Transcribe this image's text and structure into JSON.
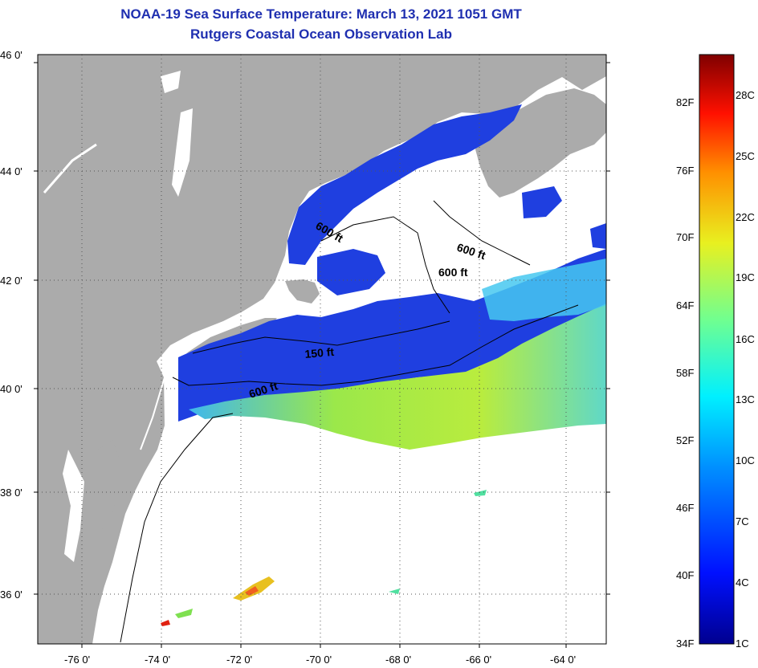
{
  "header": {
    "title": "NOAA-19 Sea Surface Temperature:  March 13, 2021 1051 GMT",
    "subtitle": "Rutgers Coastal Ocean Observation Lab"
  },
  "map": {
    "lat_labels": [
      "46 0'",
      "44 0'",
      "42 0'",
      "40 0'",
      "38 0'",
      "36 0'"
    ],
    "lon_labels": [
      "-76 0'",
      "-74 0'",
      "-72 0'",
      "-70 0'",
      "-68 0'",
      "-66 0'",
      "-64 0'"
    ],
    "contour_labels": [
      "600 ft",
      "600 ft",
      "600 ft",
      "150 ft",
      "600 ft"
    ],
    "colors": {
      "land": "#ababab",
      "cloud": "#ffffff",
      "cold": "#1f3fe0",
      "warm": "#9ee84a"
    }
  },
  "colorbar": {
    "fahrenheit_labels": [
      "82F",
      "76F",
      "70F",
      "64F",
      "58F",
      "52F",
      "46F",
      "40F",
      "34F"
    ],
    "celsius_labels": [
      "28C",
      "25C",
      "22C",
      "19C",
      "16C",
      "13C",
      "10C",
      "7C",
      "4C",
      "1C"
    ]
  }
}
